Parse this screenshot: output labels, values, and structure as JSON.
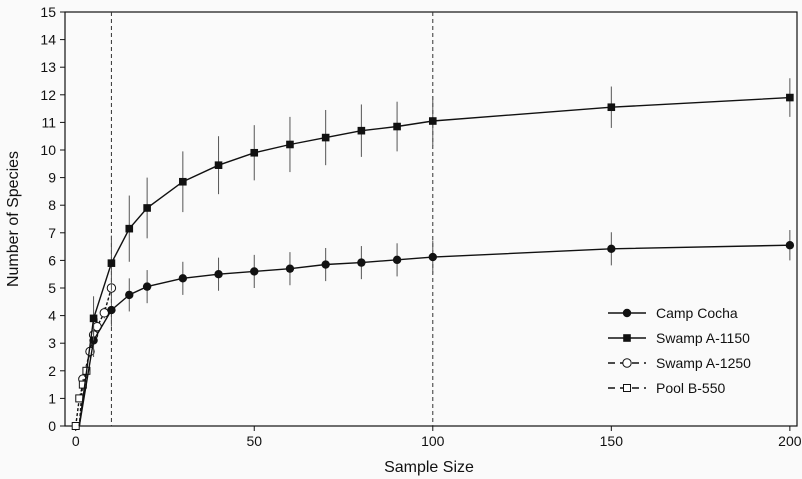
{
  "chart_data": {
    "type": "line",
    "xlabel": "Sample Size",
    "ylabel": "Number of Species",
    "xlim": [
      -3,
      202
    ],
    "ylim": [
      0,
      15
    ],
    "xticks": [
      0,
      50,
      100,
      150,
      200
    ],
    "yticks": [
      0,
      1,
      2,
      3,
      4,
      5,
      6,
      7,
      8,
      9,
      10,
      11,
      12,
      13,
      14,
      15
    ],
    "reference_lines_x": [
      10,
      100
    ],
    "grid": false,
    "legend_position": "bottom-right",
    "series": [
      {
        "name": "Camp Cocha",
        "marker": "filled-circle",
        "line_style": "solid",
        "points": [
          {
            "x": 1,
            "y": 0,
            "err": 0
          },
          {
            "x": 5,
            "y": 3.1,
            "err": 0.6
          },
          {
            "x": 10,
            "y": 4.2,
            "err": 0.6
          },
          {
            "x": 15,
            "y": 4.75,
            "err": 0.6
          },
          {
            "x": 20,
            "y": 5.05,
            "err": 0.6
          },
          {
            "x": 30,
            "y": 5.35,
            "err": 0.6
          },
          {
            "x": 40,
            "y": 5.5,
            "err": 0.6
          },
          {
            "x": 50,
            "y": 5.6,
            "err": 0.6
          },
          {
            "x": 60,
            "y": 5.7,
            "err": 0.6
          },
          {
            "x": 70,
            "y": 5.85,
            "err": 0.6
          },
          {
            "x": 80,
            "y": 5.92,
            "err": 0.6
          },
          {
            "x": 90,
            "y": 6.02,
            "err": 0.6
          },
          {
            "x": 100,
            "y": 6.12,
            "err": 0.6
          },
          {
            "x": 150,
            "y": 6.42,
            "err": 0.6
          },
          {
            "x": 200,
            "y": 6.55,
            "err": 0.55
          }
        ]
      },
      {
        "name": "Swamp A-1150",
        "marker": "filled-square",
        "line_style": "solid",
        "points": [
          {
            "x": 1,
            "y": 0,
            "err": 0
          },
          {
            "x": 5,
            "y": 3.9,
            "err": 0.8
          },
          {
            "x": 10,
            "y": 5.9,
            "err": 1.0
          },
          {
            "x": 15,
            "y": 7.15,
            "err": 1.2
          },
          {
            "x": 20,
            "y": 7.9,
            "err": 1.1
          },
          {
            "x": 30,
            "y": 8.85,
            "err": 1.1
          },
          {
            "x": 40,
            "y": 9.45,
            "err": 1.05
          },
          {
            "x": 50,
            "y": 9.9,
            "err": 1.0
          },
          {
            "x": 60,
            "y": 10.2,
            "err": 1.0
          },
          {
            "x": 70,
            "y": 10.45,
            "err": 1.0
          },
          {
            "x": 80,
            "y": 10.7,
            "err": 0.95
          },
          {
            "x": 90,
            "y": 10.85,
            "err": 0.9
          },
          {
            "x": 100,
            "y": 11.05,
            "err": 0.9
          },
          {
            "x": 150,
            "y": 11.55,
            "err": 0.75
          },
          {
            "x": 200,
            "y": 11.9,
            "err": 0.7
          }
        ]
      },
      {
        "name": "Swamp A-1250",
        "marker": "open-circle",
        "line_style": "dashed",
        "points": [
          {
            "x": 1,
            "y": 0,
            "err": 0
          },
          {
            "x": 2,
            "y": 1.7,
            "err": 0.2
          },
          {
            "x": 4,
            "y": 2.7,
            "err": 0.25
          },
          {
            "x": 5,
            "y": 3.3,
            "err": 0.3
          },
          {
            "x": 6,
            "y": 3.6,
            "err": 0.3
          },
          {
            "x": 8,
            "y": 4.1,
            "err": 0.2
          },
          {
            "x": 10,
            "y": 5.0,
            "err": 0
          }
        ]
      },
      {
        "name": "Pool B-550",
        "marker": "open-square",
        "line_style": "dashed",
        "points": [
          {
            "x": 0,
            "y": 0,
            "err": 0
          },
          {
            "x": 1,
            "y": 1.0,
            "err": 0
          },
          {
            "x": 2,
            "y": 1.5,
            "err": 0.2
          },
          {
            "x": 3,
            "y": 2.0,
            "err": 0.2
          }
        ]
      }
    ]
  }
}
